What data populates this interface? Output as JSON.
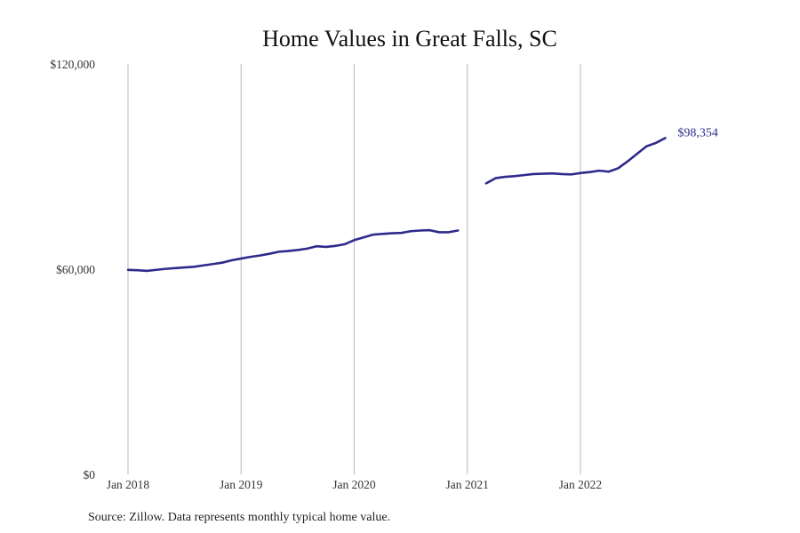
{
  "chart_data": {
    "type": "line",
    "title": "Home Values in Great Falls, SC",
    "xlabel": "",
    "ylabel": "",
    "ylim": [
      0,
      120000
    ],
    "xlim": [
      "2018-01",
      "2023-04"
    ],
    "y_ticks": [
      {
        "value": 0,
        "label": "$0"
      },
      {
        "value": 60000,
        "label": "$60,000"
      },
      {
        "value": 120000,
        "label": "$120,000"
      }
    ],
    "x_ticks": [
      {
        "value": "2018-01",
        "label": "Jan 2018"
      },
      {
        "value": "2019-01",
        "label": "Jan 2019"
      },
      {
        "value": "2020-01",
        "label": "Jan 2020"
      },
      {
        "value": "2021-01",
        "label": "Jan 2021"
      },
      {
        "value": "2022-01",
        "label": "Jan 2022"
      }
    ],
    "grid": {
      "vertical": true,
      "horizontal": false
    },
    "series": [
      {
        "color": "#2e2a8c",
        "segments": [
          [
            {
              "x": "2018-01",
              "y": 59800
            },
            {
              "x": "2018-02",
              "y": 59700
            },
            {
              "x": "2018-03",
              "y": 59500
            },
            {
              "x": "2018-04",
              "y": 59800
            },
            {
              "x": "2018-05",
              "y": 60100
            },
            {
              "x": "2018-06",
              "y": 60300
            },
            {
              "x": "2018-07",
              "y": 60500
            },
            {
              "x": "2018-08",
              "y": 60700
            },
            {
              "x": "2018-09",
              "y": 61100
            },
            {
              "x": "2018-10",
              "y": 61500
            },
            {
              "x": "2018-11",
              "y": 61900
            },
            {
              "x": "2018-12",
              "y": 62600
            },
            {
              "x": "2019-01",
              "y": 63100
            },
            {
              "x": "2019-02",
              "y": 63600
            },
            {
              "x": "2019-03",
              "y": 64000
            },
            {
              "x": "2019-04",
              "y": 64500
            },
            {
              "x": "2019-05",
              "y": 65100
            },
            {
              "x": "2019-06",
              "y": 65300
            },
            {
              "x": "2019-07",
              "y": 65600
            },
            {
              "x": "2019-08",
              "y": 66000
            },
            {
              "x": "2019-09",
              "y": 66700
            },
            {
              "x": "2019-10",
              "y": 66500
            },
            {
              "x": "2019-11",
              "y": 66800
            },
            {
              "x": "2019-12",
              "y": 67300
            },
            {
              "x": "2020-01",
              "y": 68500
            },
            {
              "x": "2020-02",
              "y": 69300
            },
            {
              "x": "2020-03",
              "y": 70100
            },
            {
              "x": "2020-04",
              "y": 70300
            },
            {
              "x": "2020-05",
              "y": 70500
            },
            {
              "x": "2020-06",
              "y": 70600
            },
            {
              "x": "2020-07",
              "y": 71100
            },
            {
              "x": "2020-08",
              "y": 71300
            },
            {
              "x": "2020-09",
              "y": 71400
            },
            {
              "x": "2020-10",
              "y": 70800
            },
            {
              "x": "2020-11",
              "y": 70800
            },
            {
              "x": "2020-12",
              "y": 71300
            }
          ],
          [
            {
              "x": "2021-03",
              "y": 85100
            },
            {
              "x": "2021-04",
              "y": 86600
            },
            {
              "x": "2021-05",
              "y": 87000
            },
            {
              "x": "2021-06",
              "y": 87200
            },
            {
              "x": "2021-07",
              "y": 87500
            },
            {
              "x": "2021-08",
              "y": 87800
            },
            {
              "x": "2021-09",
              "y": 87900
            },
            {
              "x": "2021-10",
              "y": 88000
            },
            {
              "x": "2021-11",
              "y": 87800
            },
            {
              "x": "2021-12",
              "y": 87700
            },
            {
              "x": "2022-01",
              "y": 88100
            },
            {
              "x": "2022-02",
              "y": 88400
            },
            {
              "x": "2022-03",
              "y": 88800
            },
            {
              "x": "2022-04",
              "y": 88500
            },
            {
              "x": "2022-05",
              "y": 89500
            },
            {
              "x": "2022-06",
              "y": 91500
            },
            {
              "x": "2022-07",
              "y": 93700
            },
            {
              "x": "2022-08",
              "y": 95900
            },
            {
              "x": "2022-09",
              "y": 96900
            },
            {
              "x": "2022-10",
              "y": 98354
            }
          ]
        ]
      }
    ],
    "annotations": [
      {
        "x": "2022-10",
        "y": 98354,
        "text": "$98,354"
      }
    ],
    "note": "Source: Zillow. Data represents monthly typical home value."
  }
}
